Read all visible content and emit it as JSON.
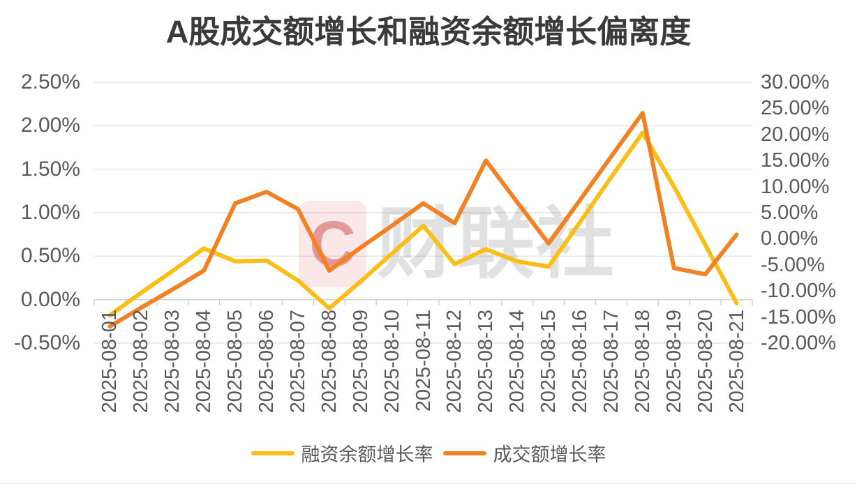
{
  "watermark": {
    "logo_letter": "C",
    "brand_text": "财联社"
  },
  "colors": {
    "series_yellow": "#FBBD16",
    "series_orange": "#F18122",
    "gridline": "#E4E4E4",
    "axis_line": "#D4D4D4",
    "tick": "#CFCFCF",
    "label_gray": "#595959",
    "title_gray": "#3A3A3A"
  },
  "chart_data": {
    "type": "line",
    "title": "A股成交额增长和融资余额增长偏离度",
    "x": [
      "2025-08-01",
      "2025-08-02",
      "2025-08-03",
      "2025-08-04",
      "2025-08-05",
      "2025-08-06",
      "2025-08-07",
      "2025-08-08",
      "2025-08-09",
      "2025-08-10",
      "2025-08-11",
      "2025-08-12",
      "2025-08-13",
      "2025-08-14",
      "2025-08-15",
      "2025-08-16",
      "2025-08-17",
      "2025-08-18",
      "2025-08-19",
      "2025-08-20",
      "2025-08-21"
    ],
    "series": [
      {
        "name": "融资余额增长率",
        "axis": "left",
        "color": "#FBBD16",
        "values": [
          -0.18,
          0.08,
          0.33,
          0.59,
          0.44,
          0.45,
          0.22,
          -0.1,
          0.21,
          0.53,
          0.85,
          0.41,
          0.58,
          0.44,
          0.38,
          0.89,
          1.41,
          1.92,
          1.3,
          0.63,
          -0.04
        ]
      },
      {
        "name": "成交额增长率",
        "axis": "right",
        "color": "#F18122",
        "values": [
          -16.8,
          -13.2,
          -9.7,
          -6.1,
          6.8,
          9.0,
          5.7,
          -6.1,
          -1.7,
          2.5,
          6.8,
          3.0,
          15.0,
          7.0,
          -0.9,
          7.4,
          15.8,
          24.1,
          -5.6,
          -6.8,
          0.8
        ]
      }
    ],
    "left_axis": {
      "min": -0.5,
      "max": 2.5,
      "step": 0.5,
      "labels": [
        "2.50%",
        "2.00%",
        "1.50%",
        "1.00%",
        "0.50%",
        "0.00%",
        "-0.50%"
      ]
    },
    "right_axis": {
      "min": -20,
      "max": 30,
      "step": 5,
      "labels": [
        "30.00%",
        "25.00%",
        "20.00%",
        "15.00%",
        "10.00%",
        "5.00%",
        "0.00%",
        "-5.00%",
        "-10.00%",
        "-15.00%",
        "-20.00%"
      ]
    },
    "grid": true,
    "legend_position": "bottom"
  }
}
